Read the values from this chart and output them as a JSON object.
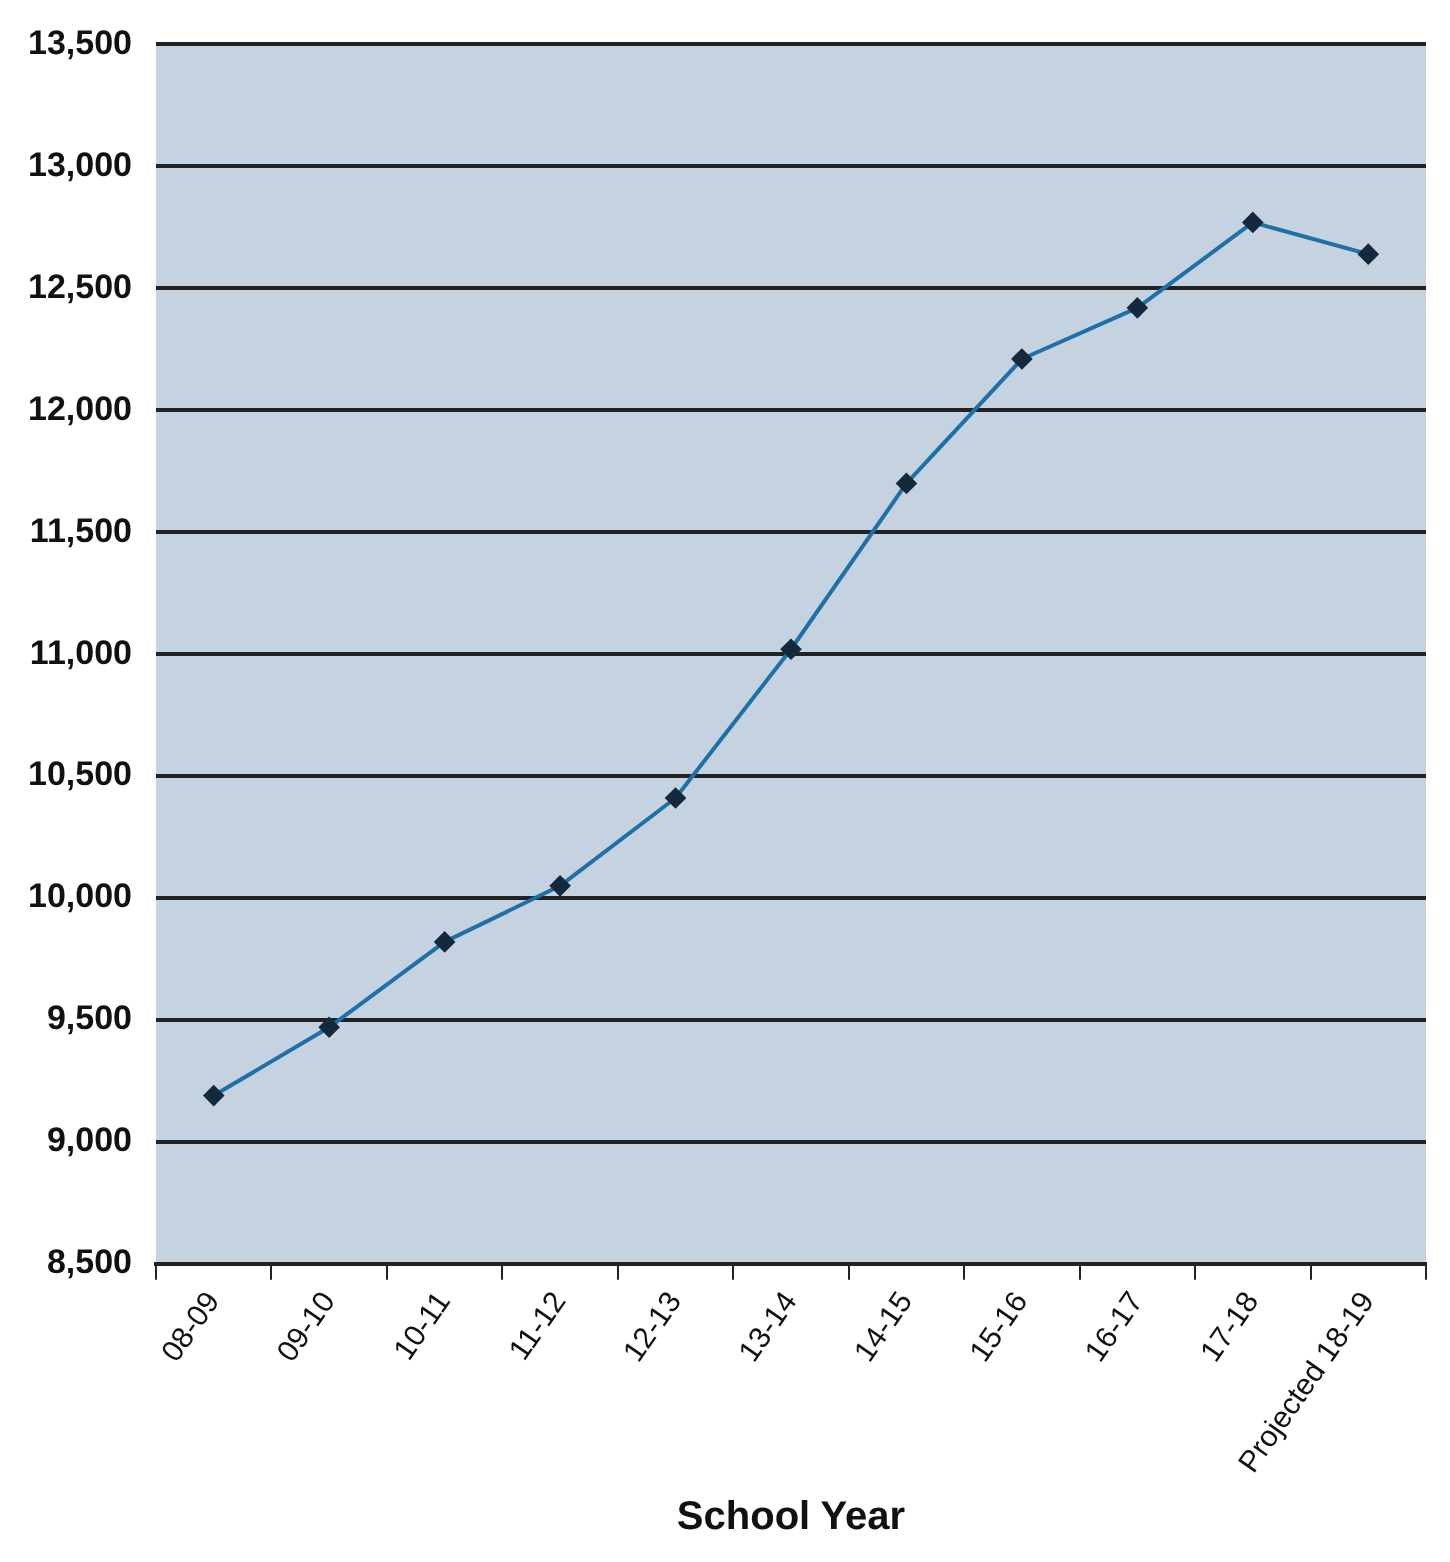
{
  "chart_data": {
    "type": "line",
    "xlabel": "School Year",
    "categories": [
      "08-09",
      "09-10",
      "10-11",
      "11-12",
      "12-13",
      "13-14",
      "14-15",
      "15-16",
      "16-17",
      "17-18",
      "Projected 18-19"
    ],
    "series": [
      {
        "color": "#1f6fa8",
        "values": [
          9190,
          9470,
          9820,
          10050,
          10410,
          11020,
          11700,
          12210,
          12420,
          12770,
          12640
        ]
      }
    ],
    "ylim": [
      8500,
      13500
    ],
    "yticks": [
      {
        "value": 8500,
        "label": "8,500"
      },
      {
        "value": 9000,
        "label": "9,000"
      },
      {
        "value": 9500,
        "label": "9,500"
      },
      {
        "value": 10000,
        "label": "10,000"
      },
      {
        "value": 10500,
        "label": "10,500"
      },
      {
        "value": 11000,
        "label": "11,000"
      },
      {
        "value": 11500,
        "label": "11,500"
      },
      {
        "value": 12000,
        "label": "12,000"
      },
      {
        "value": 12500,
        "label": "12,500"
      },
      {
        "value": 13000,
        "label": "13,000"
      },
      {
        "value": 13500,
        "label": "13,500"
      }
    ],
    "grid": "y",
    "marker": "diamond",
    "line_style": "solid",
    "legend": false
  }
}
